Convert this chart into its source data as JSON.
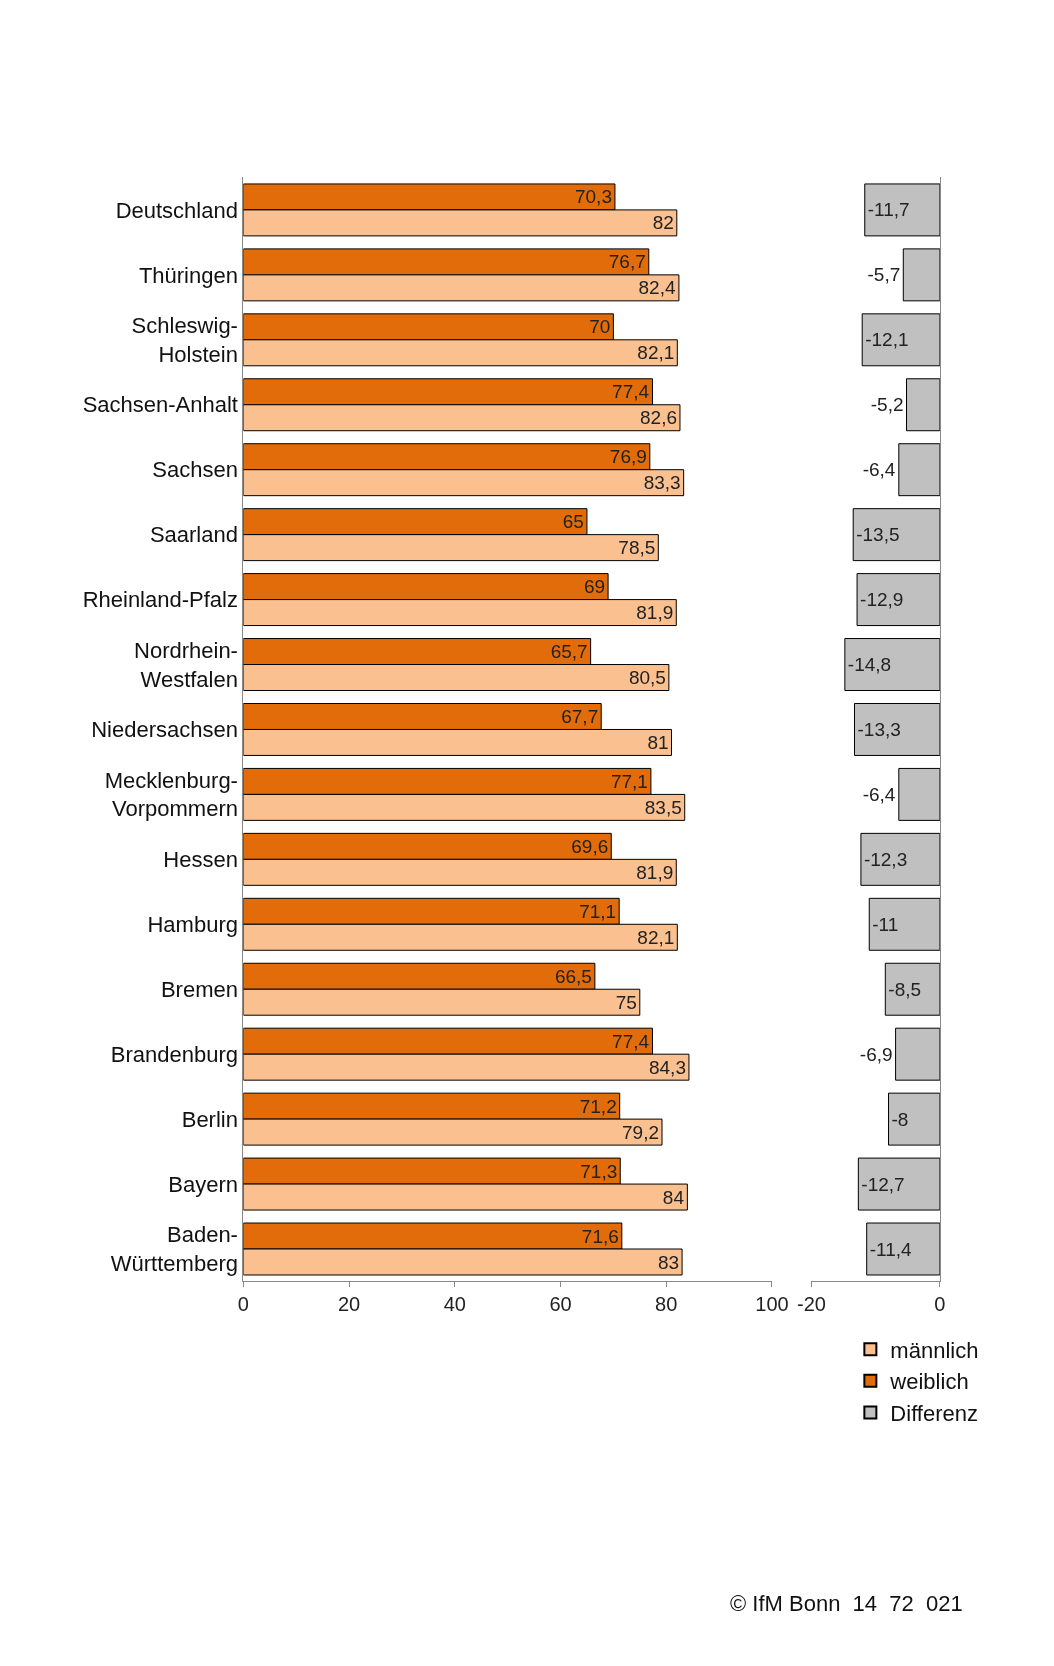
{
  "chart_data": [
    {
      "type": "bar",
      "orientation": "horizontal",
      "categories": [
        "Deutschland",
        "Thüringen",
        "Schleswig-\nHolstein",
        "Sachsen-Anhalt",
        "Sachsen",
        "Saarland",
        "Rheinland-Pfalz",
        "Nordrhein-\nWestfalen",
        "Niedersachsen",
        "Mecklenburg-\nVorpommern",
        "Hessen",
        "Hamburg",
        "Bremen",
        "Brandenburg",
        "Berlin",
        "Bayern",
        "Baden-\nWürttemberg"
      ],
      "series": [
        {
          "name": "männlich",
          "color": "#fac090",
          "values": [
            82,
            82.4,
            82.1,
            82.6,
            83.3,
            78.5,
            81.9,
            80.5,
            81,
            83.5,
            81.9,
            82.1,
            75,
            84.3,
            79.2,
            84,
            83
          ],
          "value_labels": [
            "82",
            "82,4",
            "82,1",
            "82,6",
            "83,3",
            "78,5",
            "81,9",
            "80,5",
            "81",
            "83,5",
            "81,9",
            "82,1",
            "75",
            "84,3",
            "79,2",
            "84",
            "83"
          ]
        },
        {
          "name": "weiblich",
          "color": "#e36c0a",
          "values": [
            70.3,
            76.7,
            70,
            77.4,
            76.9,
            65,
            69,
            65.7,
            67.7,
            77.1,
            69.6,
            71.1,
            66.5,
            77.4,
            71.2,
            71.3,
            71.6
          ],
          "value_labels": [
            "70,3",
            "76,7",
            "70",
            "77,4",
            "76,9",
            "65",
            "69",
            "65,7",
            "67,7",
            "77,1",
            "69,6",
            "71,1",
            "66,5",
            "77,4",
            "71,2",
            "71,3",
            "71,6"
          ]
        }
      ],
      "xlim": [
        0,
        100
      ],
      "xticks": [
        0,
        20,
        40,
        60,
        80,
        100
      ],
      "legend": "bottom right",
      "annotations": [
        "© IfM Bonn  14  72  021"
      ]
    },
    {
      "type": "bar",
      "orientation": "horizontal",
      "categories": [
        null,
        null,
        null,
        null,
        null,
        null,
        null,
        null,
        null,
        null,
        null,
        null,
        null,
        null,
        null,
        null,
        null
      ],
      "series": [
        {
          "name": "Differenz",
          "color": "#c0c0c0",
          "values": [
            -11.7,
            -5.7,
            -12.1,
            -5.2,
            -6.4,
            -13.5,
            -12.9,
            -14.8,
            -13.3,
            -6.4,
            -12.3,
            -11,
            -8.5,
            -6.9,
            -8,
            -12.7,
            -11.4
          ],
          "value_labels": [
            "-11,7",
            "-5,7",
            "-12,1",
            "-5,2",
            "-6,4",
            "-13,5",
            "-12,9",
            "-14,8",
            "-13,3",
            "-6,4",
            "-12,3",
            "-11",
            "-8,5",
            "-6,9",
            "-8",
            "-12,7",
            "-11,4"
          ]
        }
      ],
      "xlim": [
        -20,
        0
      ],
      "xticks": [
        -20,
        0
      ],
      "legend": "bottom right",
      "tick_labels": "x"
    }
  ]
}
